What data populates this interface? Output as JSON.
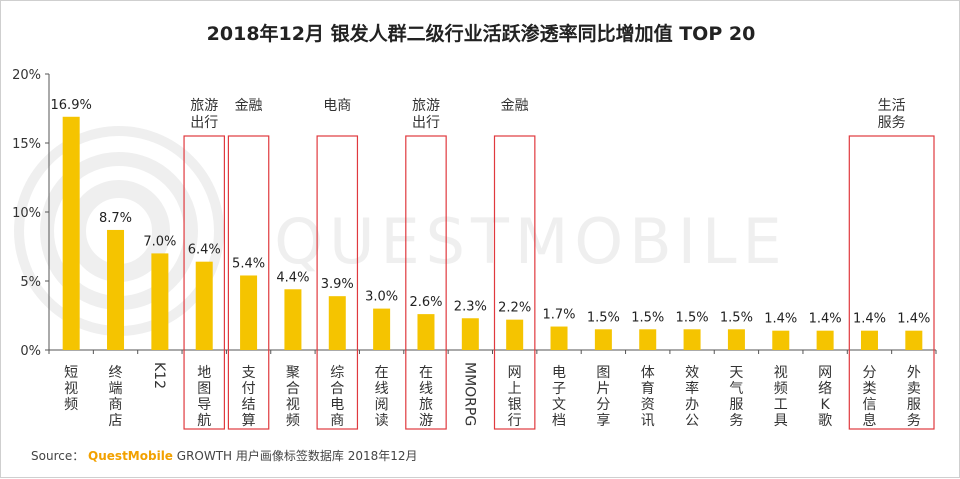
{
  "title": "2018年12月 银发人群二级行业活跃渗透率同比增加值 TOP 20",
  "watermark": "QUESTMOBILE",
  "source": {
    "prefix": "Source：",
    "brand": "QuestMobile",
    "suffix": "GROWTH 用户画像标签数据库 2018年12月"
  },
  "colors": {
    "bar": "#F5C400",
    "highlight_box": "#E0393E",
    "axis": "#555555",
    "watermark": "#EFEFEF"
  },
  "chart_data": {
    "type": "bar",
    "categories": [
      "短视频",
      "终端商店",
      "K12",
      "地图导航",
      "支付结算",
      "聚合视频",
      "综合电商",
      "在线阅读",
      "在线旅游",
      "MMORPG",
      "网上银行",
      "电子文档",
      "图片分享",
      "体育资讯",
      "效率办公",
      "天气服务",
      "视频工具",
      "网络K歌",
      "分类信息",
      "外卖服务"
    ],
    "values": [
      16.9,
      8.7,
      7.0,
      6.4,
      5.4,
      4.4,
      3.9,
      3.0,
      2.6,
      2.3,
      2.2,
      1.7,
      1.5,
      1.5,
      1.5,
      1.5,
      1.4,
      1.4,
      1.4,
      1.4
    ],
    "value_labels": [
      "16.9%",
      "8.7%",
      "7.0%",
      "6.4%",
      "5.4%",
      "4.4%",
      "3.9%",
      "3.0%",
      "2.6%",
      "2.3%",
      "2.2%",
      "1.7%",
      "1.5%",
      "1.5%",
      "1.5%",
      "1.5%",
      "1.4%",
      "1.4%",
      "1.4%",
      "1.4%"
    ],
    "ylim": [
      0,
      20
    ],
    "yticks": [
      "0%",
      "5%",
      "10%",
      "15%",
      "20%"
    ],
    "ytick_values": [
      0,
      5,
      10,
      15,
      20
    ],
    "grid": false,
    "groups": [
      {
        "label": [
          "旅游",
          "出行"
        ],
        "start": 3,
        "end": 3
      },
      {
        "label": [
          "金融"
        ],
        "start": 4,
        "end": 4
      },
      {
        "label": [
          "电商"
        ],
        "start": 6,
        "end": 6
      },
      {
        "label": [
          "旅游",
          "出行"
        ],
        "start": 8,
        "end": 8
      },
      {
        "label": [
          "金融"
        ],
        "start": 10,
        "end": 10
      },
      {
        "label": [
          "生活",
          "服务"
        ],
        "start": 18,
        "end": 19
      }
    ]
  }
}
